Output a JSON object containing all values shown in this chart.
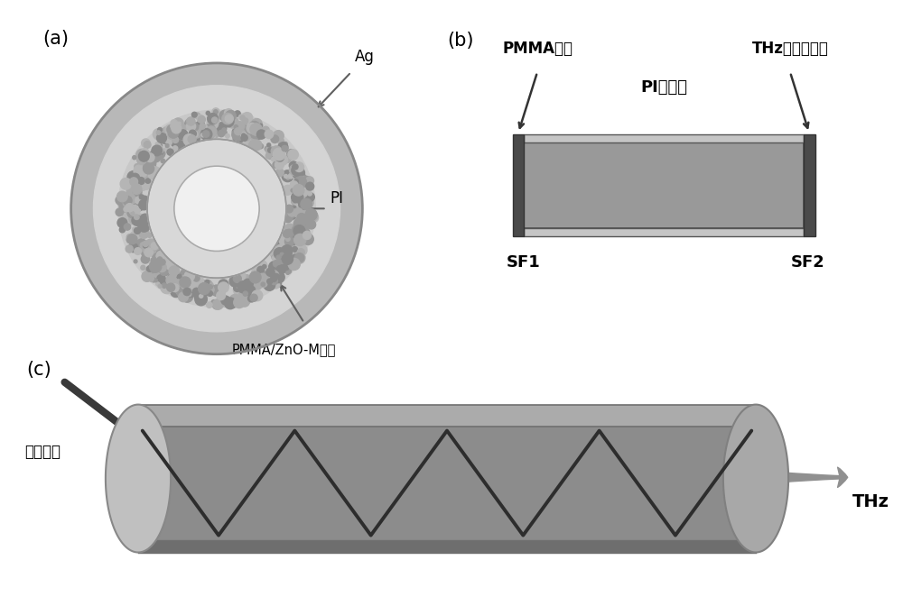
{
  "bg_color": "#ffffff",
  "panel_a_label": "(a)",
  "panel_b_label": "(b)",
  "panel_c_label": "(c)",
  "ag_label": "Ag",
  "pi_label": "PI",
  "pmma_zno_label": "PMMA/ZnO-M薤膜",
  "pmma_sheet_label": "PMMA薄片",
  "thz_filter_label": "THz带通滤波片",
  "pi_waveguide_label": "PI波导管",
  "sf1_label": "SF1",
  "sf2_label": "SF2",
  "green_laser_label": "绿色激光",
  "thz_label": "THz",
  "text_color": "#000000"
}
